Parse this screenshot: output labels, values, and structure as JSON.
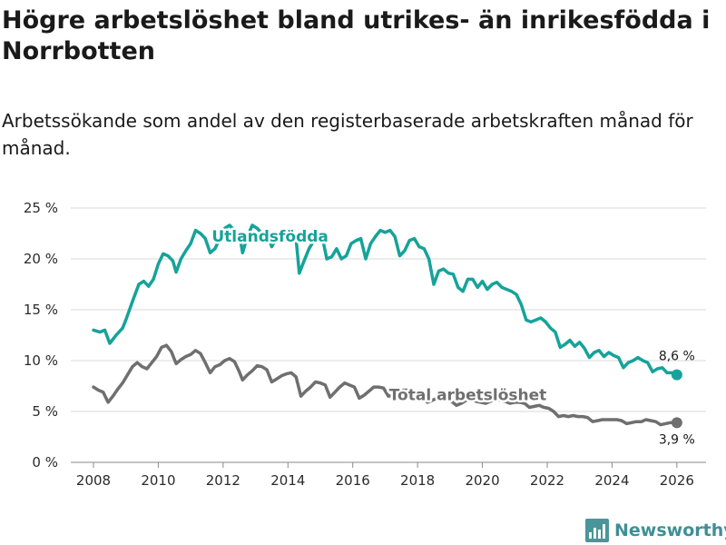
{
  "title": "Högre arbetslöshet bland utrikes- än inrikesfödda i Norrbotten",
  "subtitle": "Arbetssökande som andel av den registerbaserade arbetskraften månad för månad.",
  "brand": "Newsworthy",
  "chart_data": {
    "type": "line",
    "title": "Högre arbetslöshet bland utrikes- än inrikesfödda i Norrbotten",
    "subtitle": "Arbetssökande som andel av den registerbaserade arbetskraften månad för månad.",
    "xlabel": "",
    "ylabel": "",
    "xlim": [
      2007.3,
      2026.9
    ],
    "ylim": [
      0,
      25
    ],
    "x_ticks": [
      2008,
      2010,
      2012,
      2014,
      2016,
      2018,
      2020,
      2022,
      2024,
      2026
    ],
    "y_ticks": [
      0,
      5,
      10,
      15,
      20,
      25
    ],
    "y_tick_labels": [
      "0 %",
      "5 %",
      "10 %",
      "15 %",
      "20 %",
      "25 %"
    ],
    "grid": true,
    "series": [
      {
        "name": "Utlandsfödda",
        "color": "#15a39a",
        "end_label": "8,6 %",
        "points": [
          [
            2008.0,
            13.0
          ],
          [
            2008.2,
            12.8
          ],
          [
            2008.35,
            13.0
          ],
          [
            2008.5,
            11.7
          ],
          [
            2008.7,
            12.5
          ],
          [
            2008.9,
            13.2
          ],
          [
            2009.0,
            14.0
          ],
          [
            2009.2,
            15.8
          ],
          [
            2009.4,
            17.5
          ],
          [
            2009.55,
            17.8
          ],
          [
            2009.7,
            17.3
          ],
          [
            2009.85,
            18.0
          ],
          [
            2010.0,
            19.5
          ],
          [
            2010.15,
            20.5
          ],
          [
            2010.3,
            20.3
          ],
          [
            2010.45,
            19.8
          ],
          [
            2010.55,
            18.7
          ],
          [
            2010.7,
            20.0
          ],
          [
            2010.85,
            20.8
          ],
          [
            2011.0,
            21.5
          ],
          [
            2011.15,
            22.8
          ],
          [
            2011.3,
            22.5
          ],
          [
            2011.45,
            22.0
          ],
          [
            2011.6,
            20.6
          ],
          [
            2011.75,
            21.0
          ],
          [
            2011.9,
            22.0
          ],
          [
            2012.05,
            23.0
          ],
          [
            2012.2,
            23.3
          ],
          [
            2012.35,
            22.8
          ],
          [
            2012.5,
            22.5
          ],
          [
            2012.6,
            20.6
          ],
          [
            2012.75,
            22.2
          ],
          [
            2012.9,
            23.3
          ],
          [
            2013.05,
            23.0
          ],
          [
            2013.2,
            22.5
          ],
          [
            2013.35,
            22.8
          ],
          [
            2013.5,
            21.2
          ],
          [
            2013.65,
            22.0
          ],
          [
            2013.8,
            22.0
          ],
          [
            2013.95,
            22.2
          ],
          [
            2014.1,
            22.5
          ],
          [
            2014.25,
            22.0
          ],
          [
            2014.35,
            18.6
          ],
          [
            2014.5,
            19.8
          ],
          [
            2014.65,
            21.0
          ],
          [
            2014.8,
            21.8
          ],
          [
            2014.95,
            22.2
          ],
          [
            2015.1,
            21.5
          ],
          [
            2015.2,
            20.0
          ],
          [
            2015.35,
            20.2
          ],
          [
            2015.5,
            21.0
          ],
          [
            2015.65,
            20.0
          ],
          [
            2015.8,
            20.3
          ],
          [
            2015.95,
            21.5
          ],
          [
            2016.1,
            21.8
          ],
          [
            2016.25,
            22.0
          ],
          [
            2016.4,
            20.0
          ],
          [
            2016.55,
            21.5
          ],
          [
            2016.7,
            22.2
          ],
          [
            2016.85,
            22.8
          ],
          [
            2017.0,
            22.6
          ],
          [
            2017.15,
            22.8
          ],
          [
            2017.3,
            22.2
          ],
          [
            2017.45,
            20.3
          ],
          [
            2017.6,
            20.8
          ],
          [
            2017.75,
            21.8
          ],
          [
            2017.9,
            22.0
          ],
          [
            2018.05,
            21.2
          ],
          [
            2018.2,
            21.0
          ],
          [
            2018.35,
            20.0
          ],
          [
            2018.5,
            17.5
          ],
          [
            2018.65,
            18.8
          ],
          [
            2018.8,
            19.0
          ],
          [
            2018.95,
            18.6
          ],
          [
            2019.1,
            18.5
          ],
          [
            2019.25,
            17.2
          ],
          [
            2019.4,
            16.8
          ],
          [
            2019.55,
            18.0
          ],
          [
            2019.7,
            18.0
          ],
          [
            2019.85,
            17.2
          ],
          [
            2020.0,
            17.8
          ],
          [
            2020.15,
            17.0
          ],
          [
            2020.3,
            17.5
          ],
          [
            2020.45,
            17.7
          ],
          [
            2020.6,
            17.2
          ],
          [
            2020.75,
            17.0
          ],
          [
            2020.9,
            16.8
          ],
          [
            2021.05,
            16.5
          ],
          [
            2021.2,
            15.5
          ],
          [
            2021.35,
            14.0
          ],
          [
            2021.5,
            13.8
          ],
          [
            2021.65,
            14.0
          ],
          [
            2021.8,
            14.2
          ],
          [
            2021.95,
            13.8
          ],
          [
            2022.1,
            13.2
          ],
          [
            2022.25,
            12.8
          ],
          [
            2022.4,
            11.3
          ],
          [
            2022.55,
            11.6
          ],
          [
            2022.7,
            12.0
          ],
          [
            2022.85,
            11.4
          ],
          [
            2023.0,
            11.8
          ],
          [
            2023.15,
            11.2
          ],
          [
            2023.3,
            10.3
          ],
          [
            2023.45,
            10.8
          ],
          [
            2023.6,
            11.0
          ],
          [
            2023.75,
            10.4
          ],
          [
            2023.9,
            10.8
          ],
          [
            2024.05,
            10.5
          ],
          [
            2024.2,
            10.3
          ],
          [
            2024.35,
            9.3
          ],
          [
            2024.5,
            9.8
          ],
          [
            2024.65,
            10.0
          ],
          [
            2024.8,
            10.3
          ],
          [
            2024.95,
            10.0
          ],
          [
            2025.1,
            9.8
          ],
          [
            2025.25,
            8.9
          ],
          [
            2025.4,
            9.2
          ],
          [
            2025.55,
            9.3
          ],
          [
            2025.7,
            8.8
          ],
          [
            2025.85,
            8.8
          ],
          [
            2026.0,
            8.6
          ]
        ]
      },
      {
        "name": "Total arbetslöshet",
        "color": "#6f6f6f",
        "end_label": "3,9 %",
        "points": [
          [
            2008.0,
            7.4
          ],
          [
            2008.15,
            7.1
          ],
          [
            2008.3,
            6.9
          ],
          [
            2008.45,
            5.9
          ],
          [
            2008.6,
            6.5
          ],
          [
            2008.75,
            7.2
          ],
          [
            2008.9,
            7.8
          ],
          [
            2009.05,
            8.6
          ],
          [
            2009.2,
            9.4
          ],
          [
            2009.35,
            9.8
          ],
          [
            2009.5,
            9.4
          ],
          [
            2009.65,
            9.2
          ],
          [
            2009.8,
            9.8
          ],
          [
            2009.95,
            10.4
          ],
          [
            2010.1,
            11.3
          ],
          [
            2010.25,
            11.5
          ],
          [
            2010.4,
            10.9
          ],
          [
            2010.55,
            9.7
          ],
          [
            2010.7,
            10.1
          ],
          [
            2010.85,
            10.4
          ],
          [
            2011.0,
            10.6
          ],
          [
            2011.15,
            11.0
          ],
          [
            2011.3,
            10.7
          ],
          [
            2011.45,
            9.8
          ],
          [
            2011.6,
            8.8
          ],
          [
            2011.75,
            9.4
          ],
          [
            2011.9,
            9.6
          ],
          [
            2012.05,
            10.0
          ],
          [
            2012.2,
            10.2
          ],
          [
            2012.35,
            9.9
          ],
          [
            2012.5,
            8.9
          ],
          [
            2012.6,
            8.1
          ],
          [
            2012.75,
            8.6
          ],
          [
            2012.9,
            9.0
          ],
          [
            2013.05,
            9.5
          ],
          [
            2013.2,
            9.4
          ],
          [
            2013.35,
            9.1
          ],
          [
            2013.5,
            7.9
          ],
          [
            2013.65,
            8.2
          ],
          [
            2013.8,
            8.5
          ],
          [
            2013.95,
            8.7
          ],
          [
            2014.1,
            8.8
          ],
          [
            2014.25,
            8.4
          ],
          [
            2014.4,
            6.5
          ],
          [
            2014.55,
            7.0
          ],
          [
            2014.7,
            7.4
          ],
          [
            2014.85,
            7.9
          ],
          [
            2015.0,
            7.8
          ],
          [
            2015.15,
            7.6
          ],
          [
            2015.3,
            6.4
          ],
          [
            2015.45,
            6.9
          ],
          [
            2015.6,
            7.4
          ],
          [
            2015.75,
            7.8
          ],
          [
            2015.9,
            7.6
          ],
          [
            2016.05,
            7.4
          ],
          [
            2016.2,
            6.3
          ],
          [
            2016.35,
            6.6
          ],
          [
            2016.5,
            7.0
          ],
          [
            2016.65,
            7.4
          ],
          [
            2016.8,
            7.4
          ],
          [
            2016.95,
            7.3
          ],
          [
            2017.1,
            6.5
          ],
          [
            2017.25,
            6.6
          ],
          [
            2017.4,
            6.9
          ],
          [
            2017.55,
            7.1
          ],
          [
            2017.7,
            7.1
          ],
          [
            2017.85,
            6.8
          ],
          [
            2018.0,
            6.8
          ],
          [
            2018.15,
            6.5
          ],
          [
            2018.3,
            5.9
          ],
          [
            2018.45,
            6.1
          ],
          [
            2018.6,
            6.3
          ],
          [
            2018.75,
            6.4
          ],
          [
            2018.9,
            6.2
          ],
          [
            2019.05,
            6.0
          ],
          [
            2019.2,
            5.6
          ],
          [
            2019.35,
            5.8
          ],
          [
            2019.5,
            6.1
          ],
          [
            2019.65,
            6.2
          ],
          [
            2019.8,
            6.0
          ],
          [
            2019.95,
            5.9
          ],
          [
            2020.1,
            5.8
          ],
          [
            2020.25,
            6.0
          ],
          [
            2020.4,
            6.2
          ],
          [
            2020.55,
            6.1
          ],
          [
            2020.7,
            6.0
          ],
          [
            2020.85,
            5.8
          ],
          [
            2021.0,
            5.9
          ],
          [
            2021.15,
            5.9
          ],
          [
            2021.3,
            5.8
          ],
          [
            2021.45,
            5.4
          ],
          [
            2021.6,
            5.5
          ],
          [
            2021.75,
            5.6
          ],
          [
            2021.9,
            5.4
          ],
          [
            2022.05,
            5.3
          ],
          [
            2022.2,
            5.0
          ],
          [
            2022.35,
            4.5
          ],
          [
            2022.5,
            4.6
          ],
          [
            2022.65,
            4.5
          ],
          [
            2022.8,
            4.6
          ],
          [
            2022.95,
            4.5
          ],
          [
            2023.1,
            4.5
          ],
          [
            2023.25,
            4.4
          ],
          [
            2023.4,
            4.0
          ],
          [
            2023.55,
            4.1
          ],
          [
            2023.7,
            4.2
          ],
          [
            2023.85,
            4.2
          ],
          [
            2024.0,
            4.2
          ],
          [
            2024.15,
            4.2
          ],
          [
            2024.3,
            4.1
          ],
          [
            2024.45,
            3.8
          ],
          [
            2024.6,
            3.9
          ],
          [
            2024.75,
            4.0
          ],
          [
            2024.9,
            4.0
          ],
          [
            2025.05,
            4.2
          ],
          [
            2025.2,
            4.1
          ],
          [
            2025.35,
            4.0
          ],
          [
            2025.5,
            3.7
          ],
          [
            2025.65,
            3.8
          ],
          [
            2025.8,
            3.9
          ],
          [
            2026.0,
            3.9
          ]
        ]
      }
    ]
  }
}
